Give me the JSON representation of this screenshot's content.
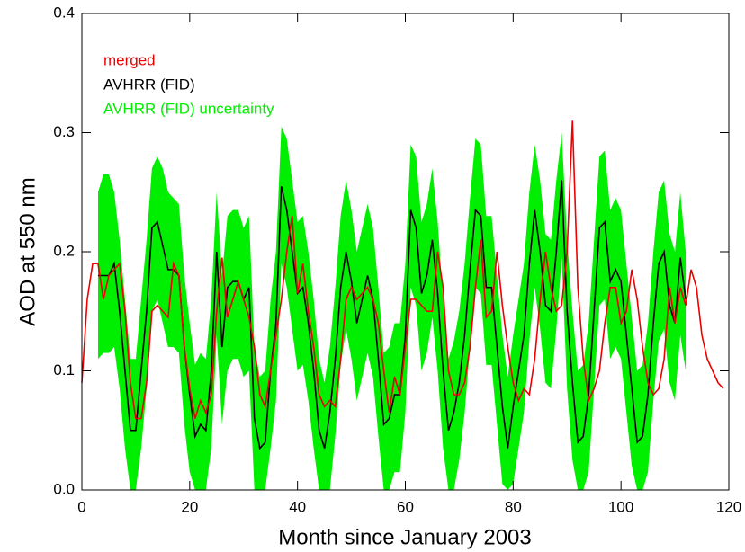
{
  "chart_data": {
    "type": "line",
    "xlabel": "Month since January 2003",
    "ylabel": "AOD at 550 nm",
    "xlim": [
      0,
      120
    ],
    "xticks": [
      0,
      20,
      40,
      60,
      80,
      100,
      120
    ],
    "ylim": [
      0,
      0.4
    ],
    "yticks": [
      {
        "value": 0,
        "label": "0.0"
      },
      0.1,
      0.2,
      0.3,
      0.4
    ],
    "legend": "upper left",
    "x": [
      0,
      1,
      2,
      3,
      4,
      5,
      6,
      7,
      8,
      9,
      10,
      11,
      12,
      13,
      14,
      15,
      16,
      17,
      18,
      19,
      20,
      21,
      22,
      23,
      24,
      25,
      26,
      27,
      28,
      29,
      30,
      31,
      32,
      33,
      34,
      35,
      36,
      37,
      38,
      39,
      40,
      41,
      42,
      43,
      44,
      45,
      46,
      47,
      48,
      49,
      50,
      51,
      52,
      53,
      54,
      55,
      56,
      57,
      58,
      59,
      60,
      61,
      62,
      63,
      64,
      65,
      66,
      67,
      68,
      69,
      70,
      71,
      72,
      73,
      74,
      75,
      76,
      77,
      78,
      79,
      80,
      81,
      82,
      83,
      84,
      85,
      86,
      87,
      88,
      89,
      90,
      91,
      92,
      93,
      94,
      95,
      96,
      97,
      98,
      99,
      100,
      101,
      102,
      103,
      104,
      105,
      106,
      107,
      108,
      109,
      110,
      111,
      112,
      113,
      114,
      115,
      116,
      117,
      118,
      119
    ],
    "band": {
      "name": "AVHRR (FID) uncertainty",
      "color": "#00ee00",
      "upper": [
        null,
        null,
        null,
        0.25,
        0.265,
        0.265,
        0.25,
        0.21,
        0.16,
        0.11,
        0.11,
        0.16,
        0.21,
        0.27,
        0.28,
        0.27,
        0.25,
        0.245,
        0.24,
        0.18,
        0.14,
        0.105,
        0.115,
        0.11,
        0.16,
        0.25,
        0.18,
        0.23,
        0.235,
        0.235,
        0.22,
        0.23,
        0.12,
        0.095,
        0.1,
        0.16,
        0.2,
        0.305,
        0.295,
        0.26,
        0.225,
        0.23,
        0.2,
        0.16,
        0.11,
        0.09,
        0.12,
        0.17,
        0.23,
        0.26,
        0.235,
        0.2,
        0.22,
        0.24,
        0.22,
        0.17,
        0.115,
        0.12,
        0.14,
        0.14,
        0.19,
        0.29,
        0.28,
        0.225,
        0.24,
        0.27,
        0.225,
        0.16,
        0.11,
        0.125,
        0.15,
        0.19,
        0.245,
        0.295,
        0.29,
        0.23,
        0.23,
        0.18,
        0.13,
        0.095,
        0.13,
        0.16,
        0.19,
        0.25,
        0.29,
        0.26,
        0.215,
        0.21,
        0.26,
        0.3,
        0.21,
        0.15,
        0.1,
        0.105,
        0.14,
        0.21,
        0.28,
        0.285,
        0.235,
        0.245,
        0.235,
        0.19,
        0.145,
        0.1,
        0.105,
        0.14,
        0.2,
        0.25,
        0.26,
        0.215,
        0.2,
        0.25,
        0.2,
        null,
        null,
        null,
        null,
        null,
        null,
        null
      ],
      "lower": [
        null,
        null,
        null,
        0.11,
        0.115,
        0.115,
        0.12,
        0.085,
        0.035,
        0,
        0,
        0.035,
        0.085,
        0.15,
        0.16,
        0.14,
        0.12,
        0.12,
        0.115,
        0.055,
        0.015,
        0,
        0,
        0,
        0.035,
        0.13,
        0.055,
        0.1,
        0.11,
        0.11,
        0.095,
        0.1,
        0,
        0,
        0,
        0.035,
        0.075,
        0.19,
        0.17,
        0.135,
        0.1,
        0.105,
        0.075,
        0.035,
        0,
        0,
        0,
        0.045,
        0.105,
        0.135,
        0.11,
        0.075,
        0.095,
        0.115,
        0.095,
        0.045,
        0,
        0,
        0.015,
        0.015,
        0.065,
        0.17,
        0.155,
        0.1,
        0.115,
        0.145,
        0.1,
        0.035,
        0,
        0,
        0.025,
        0.065,
        0.12,
        0.17,
        0.165,
        0.105,
        0.105,
        0.055,
        0.005,
        0,
        0.005,
        0.035,
        0.065,
        0.125,
        0.17,
        0.135,
        0.09,
        0.085,
        0.135,
        0.195,
        0.085,
        0.025,
        0,
        0,
        0.015,
        0.085,
        0.155,
        0.16,
        0.11,
        0.12,
        0.11,
        0.065,
        0.02,
        0,
        0,
        0.015,
        0.075,
        0.125,
        0.135,
        0.09,
        0.075,
        0.13,
        0.1,
        null,
        null,
        null,
        null,
        null,
        null,
        null
      ]
    },
    "series": [
      {
        "name": "merged",
        "color": "#ee0000",
        "values": [
          0.09,
          0.16,
          0.19,
          0.19,
          0.16,
          0.18,
          0.185,
          0.19,
          0.15,
          0.09,
          0.06,
          0.06,
          0.09,
          0.15,
          0.155,
          0.15,
          0.145,
          0.19,
          0.18,
          0.12,
          0.085,
          0.06,
          0.075,
          0.065,
          0.08,
          0.15,
          0.195,
          0.145,
          0.16,
          0.175,
          0.16,
          0.145,
          0.12,
          0.08,
          0.07,
          0.1,
          0.13,
          0.16,
          0.2,
          0.23,
          0.165,
          0.19,
          0.15,
          0.12,
          0.08,
          0.07,
          0.075,
          0.07,
          0.11,
          0.16,
          0.17,
          0.16,
          0.165,
          0.17,
          0.16,
          0.14,
          0.1,
          0.065,
          0.095,
          0.08,
          0.12,
          0.16,
          0.16,
          0.155,
          0.15,
          0.15,
          0.2,
          0.17,
          0.1,
          0.08,
          0.08,
          0.09,
          0.12,
          0.17,
          0.21,
          0.145,
          0.15,
          0.2,
          0.155,
          0.12,
          0.09,
          0.075,
          0.085,
          0.08,
          0.11,
          0.16,
          0.2,
          0.17,
          0.15,
          0.155,
          0.2,
          0.31,
          0.17,
          0.11,
          0.075,
          0.085,
          0.1,
          0.14,
          0.17,
          0.17,
          0.14,
          0.15,
          0.185,
          0.16,
          0.12,
          0.09,
          0.08,
          0.085,
          0.11,
          0.17,
          0.14,
          0.17,
          0.155,
          0.185,
          0.17,
          0.13,
          0.11,
          0.1,
          0.09,
          0.085
        ]
      },
      {
        "name": "AVHRR (FID)",
        "color": "#000000",
        "values": [
          null,
          null,
          null,
          0.18,
          0.18,
          0.18,
          0.19,
          0.15,
          0.1,
          0.05,
          0.05,
          0.1,
          0.15,
          0.22,
          0.225,
          0.205,
          0.185,
          0.185,
          0.18,
          0.12,
          0.08,
          0.045,
          0.055,
          0.05,
          0.1,
          0.2,
          0.12,
          0.17,
          0.175,
          0.175,
          0.16,
          0.17,
          0.06,
          0.035,
          0.04,
          0.1,
          0.14,
          0.255,
          0.235,
          0.2,
          0.165,
          0.17,
          0.14,
          0.1,
          0.05,
          0.035,
          0.065,
          0.11,
          0.17,
          0.2,
          0.175,
          0.14,
          0.16,
          0.18,
          0.16,
          0.11,
          0.055,
          0.06,
          0.08,
          0.08,
          0.13,
          0.235,
          0.22,
          0.165,
          0.18,
          0.21,
          0.165,
          0.1,
          0.05,
          0.065,
          0.09,
          0.13,
          0.185,
          0.235,
          0.23,
          0.17,
          0.17,
          0.12,
          0.07,
          0.035,
          0.07,
          0.1,
          0.13,
          0.19,
          0.235,
          0.2,
          0.155,
          0.15,
          0.2,
          0.26,
          0.15,
          0.09,
          0.04,
          0.045,
          0.08,
          0.15,
          0.22,
          0.225,
          0.175,
          0.185,
          0.175,
          0.13,
          0.085,
          0.04,
          0.045,
          0.08,
          0.14,
          0.19,
          0.2,
          0.155,
          0.14,
          0.195,
          0.16,
          null,
          null,
          null,
          null,
          null,
          null,
          null
        ]
      }
    ]
  }
}
